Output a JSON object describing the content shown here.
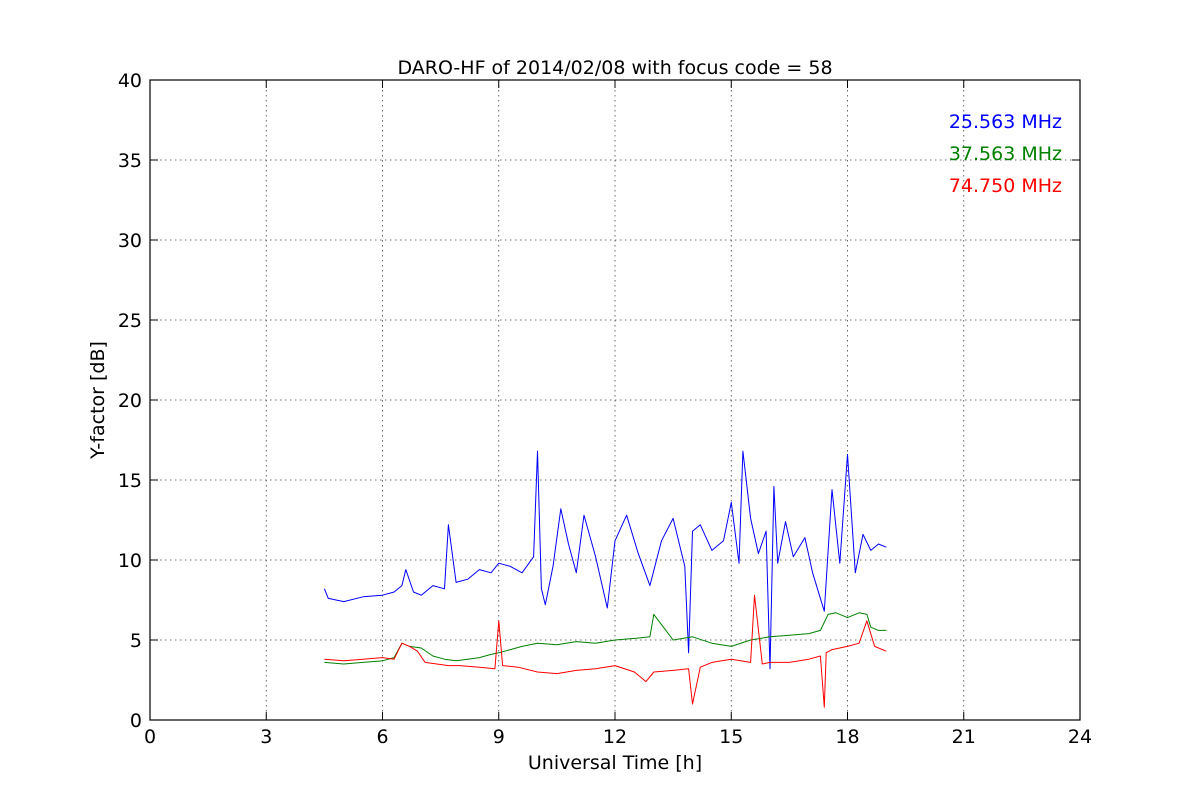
{
  "chart_data": {
    "type": "line",
    "title": "DARO-HF of 2014/02/08 with focus code = 58",
    "xlabel": "Universal Time [h]",
    "ylabel": "Y-factor [dB]",
    "xlim": [
      0,
      24
    ],
    "ylim": [
      0,
      40
    ],
    "xticks": [
      0,
      3,
      6,
      9,
      12,
      15,
      18,
      21,
      24
    ],
    "xtick_labels": [
      "0",
      "3",
      "6",
      "9",
      "12",
      "15",
      "18",
      "21",
      "24"
    ],
    "yticks": [
      0,
      5,
      10,
      15,
      20,
      25,
      30,
      35,
      40
    ],
    "ytick_labels": [
      "0",
      "5",
      "10",
      "15",
      "20",
      "25",
      "30",
      "35",
      "40"
    ],
    "grid": true,
    "legend_position": "top-right",
    "series": [
      {
        "name": "25.563 MHz",
        "color": "#0000ff",
        "x": [
          4.5,
          4.6,
          5.0,
          5.5,
          6.0,
          6.3,
          6.5,
          6.6,
          6.8,
          7.0,
          7.3,
          7.6,
          7.7,
          7.9,
          8.2,
          8.5,
          8.8,
          9.0,
          9.3,
          9.6,
          9.9,
          10.0,
          10.1,
          10.2,
          10.4,
          10.6,
          10.8,
          11.0,
          11.2,
          11.5,
          11.8,
          12.0,
          12.3,
          12.6,
          12.9,
          13.2,
          13.5,
          13.8,
          13.9,
          14.0,
          14.2,
          14.5,
          14.8,
          15.0,
          15.2,
          15.3,
          15.5,
          15.7,
          15.9,
          16.0,
          16.1,
          16.2,
          16.4,
          16.6,
          16.9,
          17.1,
          17.4,
          17.6,
          17.8,
          18.0,
          18.2,
          18.4,
          18.6,
          18.8,
          19.0
        ],
        "y": [
          8.2,
          7.6,
          7.4,
          7.7,
          7.8,
          8.0,
          8.4,
          9.4,
          8.0,
          7.8,
          8.4,
          8.2,
          12.2,
          8.6,
          8.8,
          9.4,
          9.2,
          9.8,
          9.6,
          9.2,
          10.2,
          16.8,
          8.2,
          7.2,
          9.6,
          13.2,
          11.0,
          9.2,
          12.8,
          10.2,
          7.0,
          11.2,
          12.8,
          10.4,
          8.4,
          11.2,
          12.6,
          9.6,
          4.2,
          11.8,
          12.2,
          10.6,
          11.2,
          13.6,
          9.8,
          16.8,
          12.6,
          10.4,
          11.8,
          3.2,
          14.6,
          9.8,
          12.4,
          10.2,
          11.4,
          9.2,
          6.8,
          14.4,
          9.8,
          16.6,
          9.2,
          11.6,
          10.6,
          11.0,
          10.8
        ]
      },
      {
        "name": "37.563 MHz",
        "color": "#008000",
        "x": [
          4.5,
          5.0,
          5.5,
          6.0,
          6.3,
          6.5,
          6.7,
          7.0,
          7.3,
          7.6,
          7.9,
          8.2,
          8.5,
          8.8,
          9.0,
          9.3,
          9.6,
          10.0,
          10.5,
          11.0,
          11.5,
          12.0,
          12.5,
          12.9,
          13.0,
          13.5,
          14.0,
          14.5,
          15.0,
          15.5,
          16.0,
          16.5,
          17.0,
          17.3,
          17.5,
          17.7,
          18.0,
          18.3,
          18.5,
          18.6,
          18.8,
          19.0
        ],
        "y": [
          3.6,
          3.5,
          3.6,
          3.7,
          3.9,
          4.8,
          4.6,
          4.5,
          4.0,
          3.8,
          3.7,
          3.8,
          3.9,
          4.1,
          4.2,
          4.4,
          4.6,
          4.8,
          4.7,
          4.9,
          4.8,
          5.0,
          5.1,
          5.2,
          6.6,
          5.0,
          5.2,
          4.8,
          4.6,
          5.0,
          5.2,
          5.3,
          5.4,
          5.6,
          6.6,
          6.7,
          6.4,
          6.7,
          6.6,
          5.8,
          5.6,
          5.6
        ]
      },
      {
        "name": "74.750 MHz",
        "color": "#ff0000",
        "x": [
          4.5,
          5.0,
          5.5,
          6.0,
          6.3,
          6.5,
          6.7,
          6.9,
          7.1,
          7.4,
          7.7,
          8.0,
          8.5,
          8.9,
          9.0,
          9.1,
          9.5,
          10.0,
          10.5,
          11.0,
          11.5,
          12.0,
          12.5,
          12.8,
          13.0,
          13.5,
          13.9,
          14.0,
          14.2,
          14.5,
          15.0,
          15.5,
          15.6,
          15.8,
          16.0,
          16.5,
          17.0,
          17.3,
          17.4,
          17.45,
          17.6,
          18.0,
          18.3,
          18.5,
          18.7,
          19.0
        ],
        "y": [
          3.8,
          3.7,
          3.8,
          3.9,
          3.8,
          4.8,
          4.6,
          4.3,
          3.6,
          3.5,
          3.4,
          3.4,
          3.3,
          3.2,
          6.2,
          3.4,
          3.3,
          3.0,
          2.9,
          3.1,
          3.2,
          3.4,
          3.0,
          2.4,
          3.0,
          3.1,
          3.2,
          1.0,
          3.3,
          3.6,
          3.8,
          3.6,
          7.8,
          3.5,
          3.6,
          3.6,
          3.8,
          4.0,
          0.8,
          4.2,
          4.4,
          4.6,
          4.8,
          6.2,
          4.6,
          4.3
        ]
      }
    ]
  }
}
